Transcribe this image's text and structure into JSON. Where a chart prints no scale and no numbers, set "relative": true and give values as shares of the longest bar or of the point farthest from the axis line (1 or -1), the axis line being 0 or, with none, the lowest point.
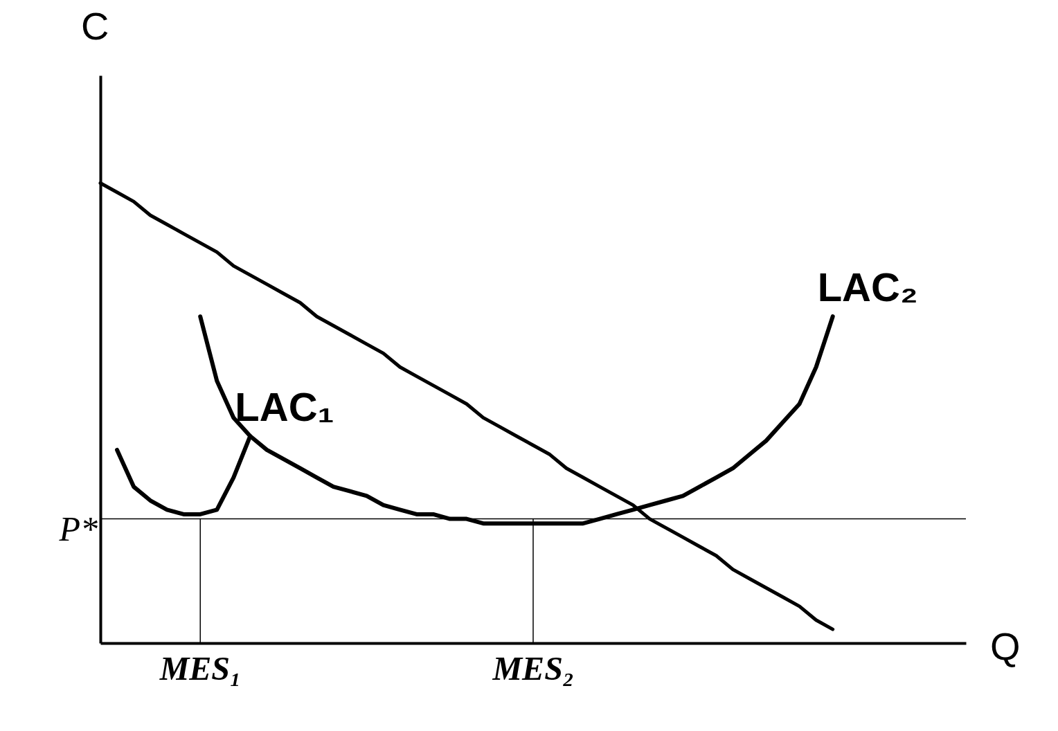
{
  "chart_data": {
    "type": "line",
    "relative": true,
    "xlabel": "Q",
    "ylabel": "C",
    "categories": [
      null,
      null,
      null,
      null,
      null,
      null,
      "MES₁",
      null,
      null,
      null,
      null,
      null,
      null,
      null,
      null,
      null,
      null,
      null,
      null,
      null,
      null,
      null,
      null,
      null,
      null,
      null,
      "MES₂",
      null,
      null,
      null,
      null,
      null,
      null,
      null,
      null,
      null,
      null,
      null,
      null,
      null,
      null,
      null,
      null,
      null,
      null,
      null,
      null,
      null,
      null,
      null,
      null,
      null,
      null
    ],
    "series": [
      {
        "color": "#000000",
        "values": [
          1.0,
          0.98,
          0.96,
          0.93,
          0.91,
          0.89,
          0.87,
          0.85,
          0.82,
          0.8,
          0.78,
          0.76,
          0.74,
          0.71,
          0.69,
          0.67,
          0.65,
          0.63,
          0.6,
          0.58,
          0.56,
          0.54,
          0.52,
          0.49,
          0.47,
          0.45,
          0.43,
          0.41,
          0.38,
          0.36,
          0.34,
          0.32,
          0.3,
          0.27,
          0.25,
          0.23,
          0.21,
          0.19,
          0.16,
          0.14,
          0.12,
          0.1,
          0.08,
          0.05,
          0.03,
          null,
          null,
          null,
          null,
          null,
          null,
          null,
          null
        ]
      },
      {
        "name": "LAC₁",
        "color": "#000000",
        "values": [
          null,
          0.42,
          0.34,
          0.31,
          0.29,
          0.28,
          0.28,
          0.29,
          0.36,
          0.45,
          null,
          null,
          null,
          null,
          null,
          null,
          null,
          null,
          null,
          null,
          null,
          null,
          null,
          null,
          null,
          null,
          null,
          null,
          null,
          null,
          null,
          null,
          null,
          null,
          null,
          null,
          null,
          null,
          null,
          null,
          null,
          null,
          null,
          null,
          null,
          null,
          null,
          null,
          null,
          null,
          null,
          null,
          null
        ]
      },
      {
        "name": "LAC₂",
        "color": "#000000",
        "values": [
          null,
          null,
          null,
          null,
          null,
          null,
          0.71,
          0.57,
          0.49,
          0.45,
          0.42,
          0.4,
          0.38,
          0.36,
          0.34,
          0.33,
          0.32,
          0.3,
          0.29,
          0.28,
          0.28,
          0.27,
          0.27,
          0.26,
          0.26,
          0.26,
          0.26,
          0.26,
          0.26,
          0.26,
          0.27,
          0.28,
          0.29,
          0.3,
          0.31,
          0.32,
          0.34,
          0.36,
          0.38,
          0.41,
          0.44,
          0.48,
          0.52,
          0.6,
          0.71,
          null,
          null,
          null,
          null,
          null,
          null,
          null,
          null
        ]
      }
    ],
    "ref_lines": [
      {
        "axis": "y",
        "value": 0.27,
        "label": "P*"
      },
      {
        "axis": "x",
        "value": "MES₁"
      },
      {
        "axis": "x",
        "value": "MES₂"
      }
    ]
  }
}
